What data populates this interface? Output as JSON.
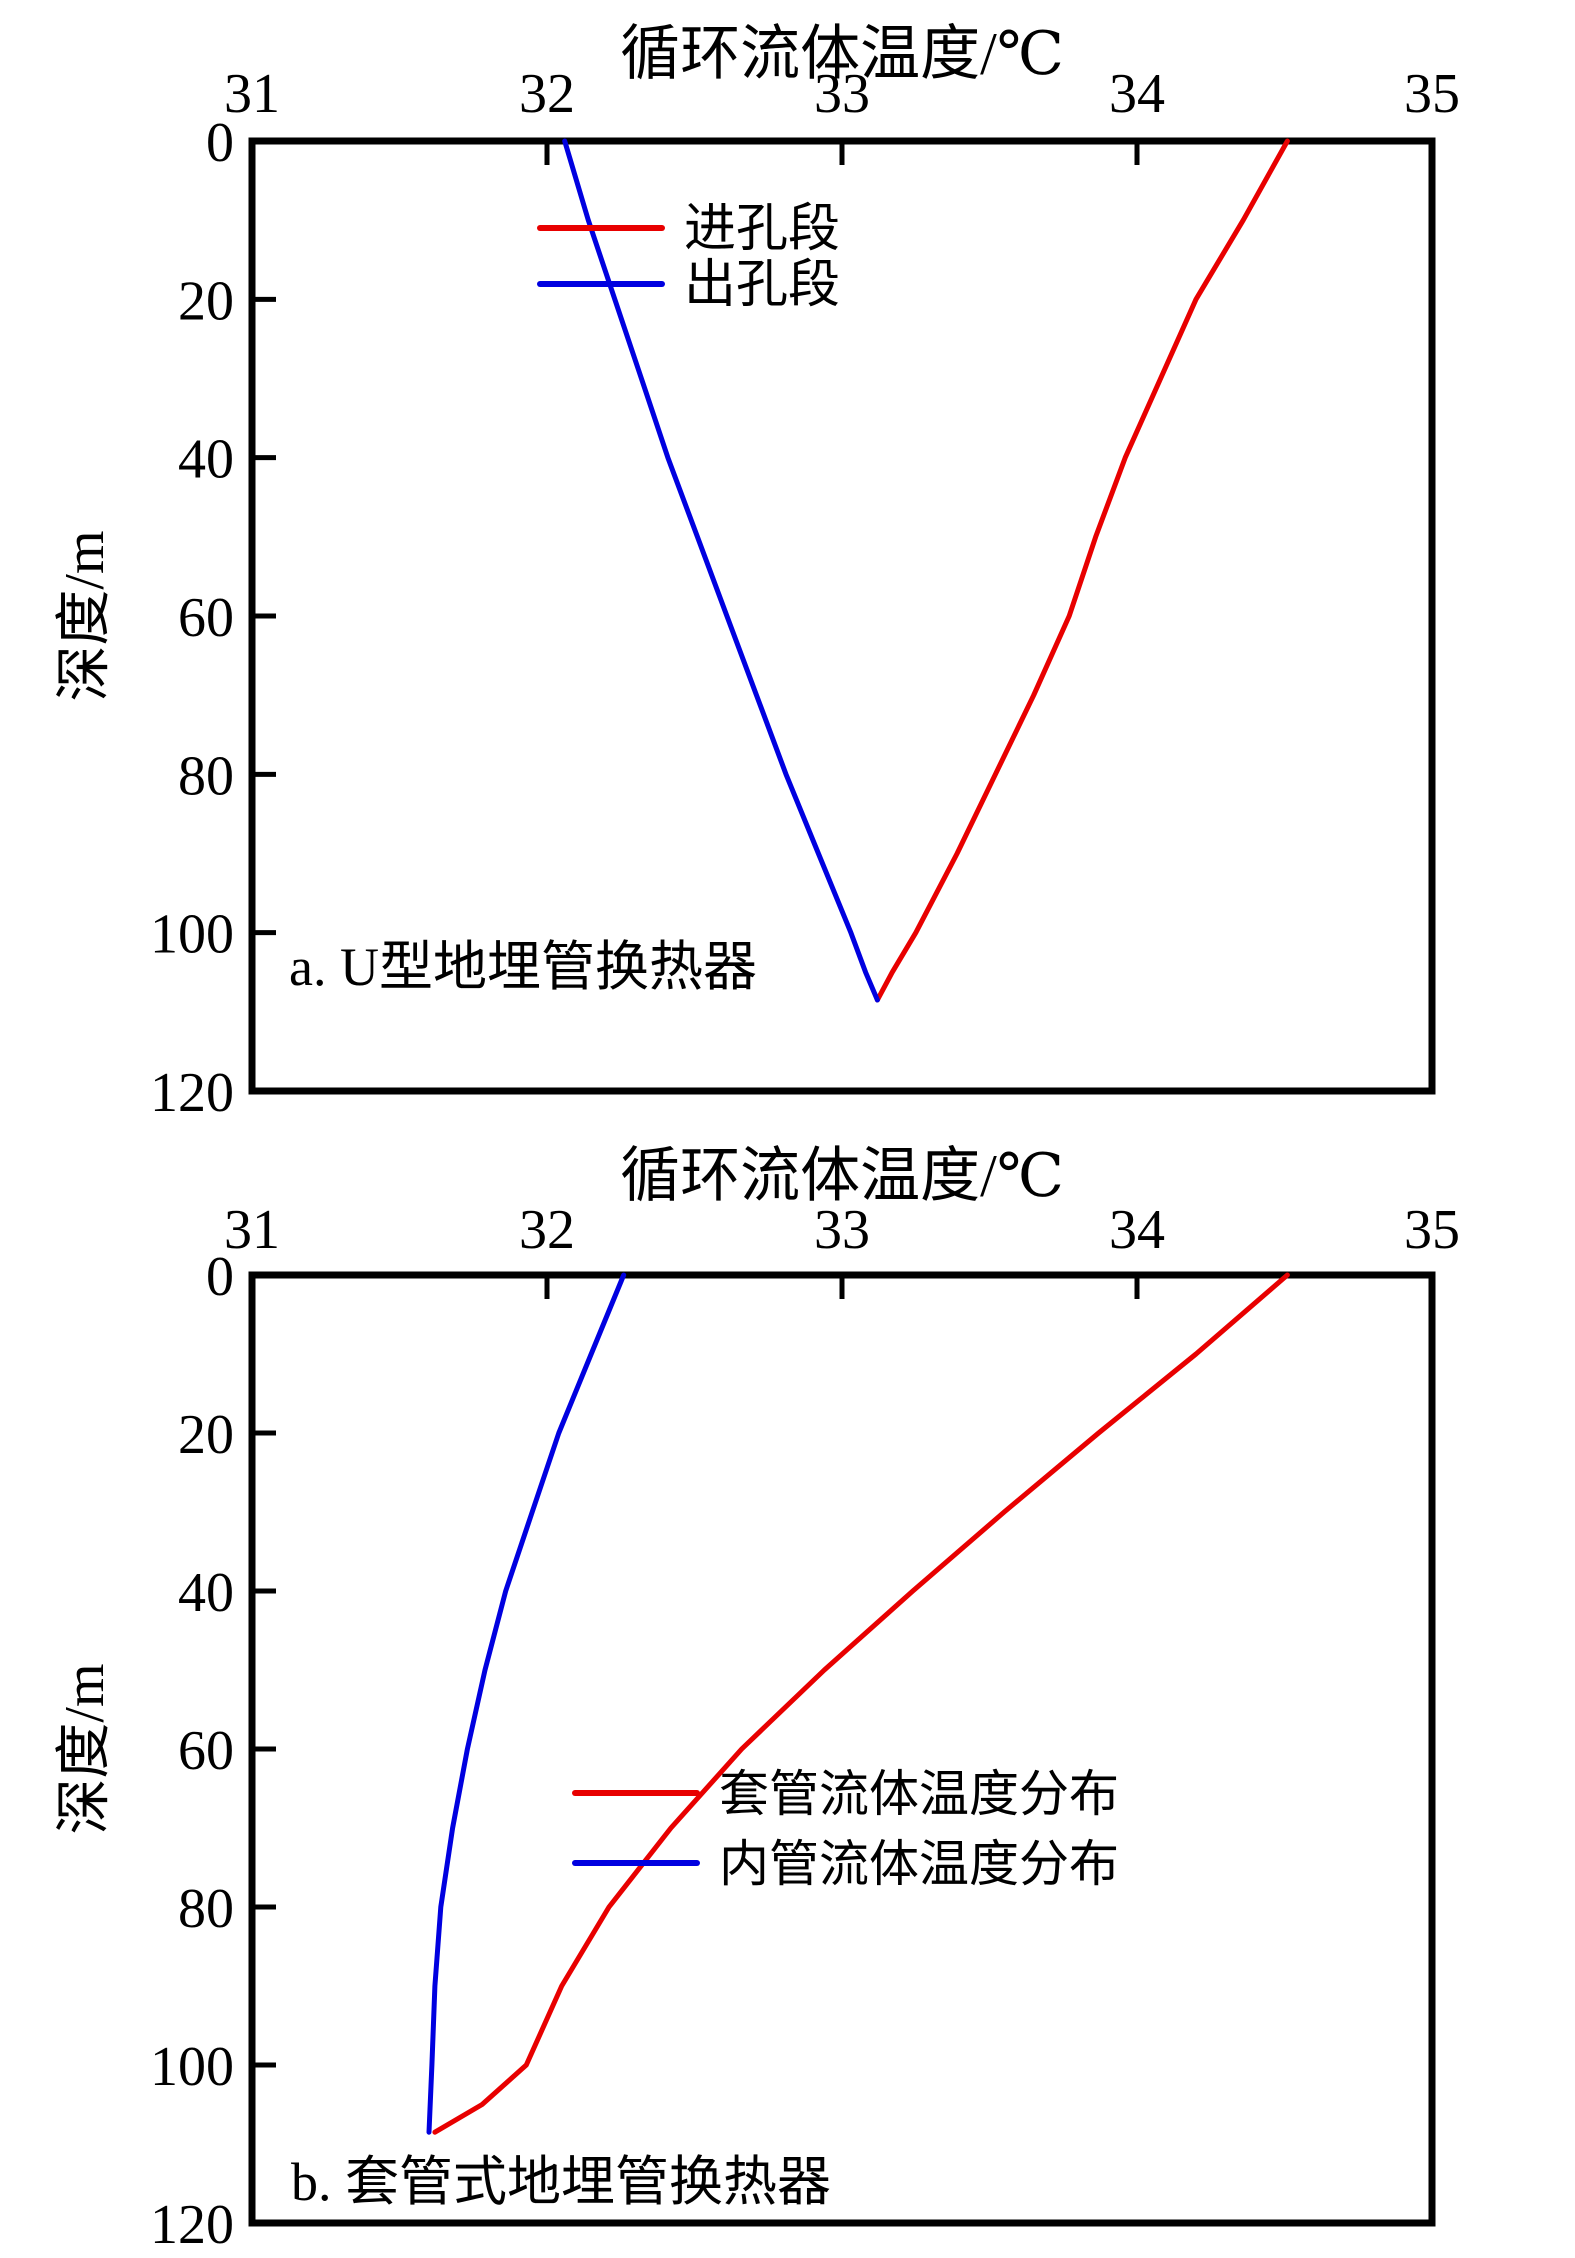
{
  "figure": {
    "background": "#ffffff",
    "axis_color": "#000000"
  },
  "chart_data": [
    {
      "id": "a",
      "type": "line",
      "title": "循环流体温度/℃",
      "xlabel": "循环流体温度/℃",
      "ylabel": "深度/m",
      "xlim": [
        31,
        35
      ],
      "ylim": [
        0,
        120
      ],
      "y_inverted": true,
      "x_ticks": [
        "31",
        "32",
        "33",
        "34",
        "35"
      ],
      "x_tick_values": [
        31,
        32,
        33,
        34,
        35
      ],
      "y_ticks": [
        "0",
        "20",
        "40",
        "60",
        "80",
        "100",
        "120"
      ],
      "y_tick_values": [
        0,
        20,
        40,
        60,
        80,
        100,
        120
      ],
      "grid": false,
      "panel_label": "a. U型地埋管换热器",
      "legend_position": "upper middle-right inside",
      "legend": [
        {
          "label": "进孔段",
          "color": "#e80000"
        },
        {
          "label": "出孔段",
          "color": "#0000e0"
        }
      ],
      "series": [
        {
          "name": "进孔段",
          "color": "#e80000",
          "points_temp_depth": [
            [
              34.51,
              0
            ],
            [
              34.36,
              10
            ],
            [
              34.2,
              20
            ],
            [
              34.08,
              30
            ],
            [
              33.96,
              40
            ],
            [
              33.86,
              50
            ],
            [
              33.77,
              60
            ],
            [
              33.65,
              70
            ],
            [
              33.52,
              80
            ],
            [
              33.39,
              90
            ],
            [
              33.25,
              100
            ],
            [
              33.17,
              105
            ],
            [
              33.12,
              108.5
            ]
          ]
        },
        {
          "name": "出孔段",
          "color": "#0000e0",
          "points_temp_depth": [
            [
              32.06,
              0
            ],
            [
              32.14,
              10
            ],
            [
              32.23,
              20
            ],
            [
              32.32,
              30
            ],
            [
              32.41,
              40
            ],
            [
              32.51,
              50
            ],
            [
              32.61,
              60
            ],
            [
              32.71,
              70
            ],
            [
              32.81,
              80
            ],
            [
              32.92,
              90
            ],
            [
              33.03,
              100
            ],
            [
              33.08,
              105
            ],
            [
              33.12,
              108.5
            ]
          ]
        }
      ]
    },
    {
      "id": "b",
      "type": "line",
      "title": "循环流体温度/℃",
      "xlabel": "循环流体温度/℃",
      "ylabel": "深度/m",
      "xlim": [
        31,
        35
      ],
      "ylim": [
        0,
        120
      ],
      "y_inverted": true,
      "x_ticks": [
        "31",
        "32",
        "33",
        "34",
        "35"
      ],
      "x_tick_values": [
        31,
        32,
        33,
        34,
        35
      ],
      "y_ticks": [
        "0",
        "20",
        "40",
        "60",
        "80",
        "100",
        "120"
      ],
      "y_tick_values": [
        0,
        20,
        40,
        60,
        80,
        100,
        120
      ],
      "grid": false,
      "panel_label": "b. 套管式地埋管换热器",
      "legend_position": "middle-right inside",
      "legend": [
        {
          "label": "套管流体温度分布",
          "color": "#e80000"
        },
        {
          "label": "内管流体温度分布",
          "color": "#0000e0"
        }
      ],
      "series": [
        {
          "name": "套管流体温度分布",
          "color": "#e80000",
          "points_temp_depth": [
            [
              34.51,
              0
            ],
            [
              34.2,
              10
            ],
            [
              33.87,
              20
            ],
            [
              33.55,
              30
            ],
            [
              33.24,
              40
            ],
            [
              32.94,
              50
            ],
            [
              32.66,
              60
            ],
            [
              32.42,
              70
            ],
            [
              32.21,
              80
            ],
            [
              32.05,
              90
            ],
            [
              31.93,
              100
            ],
            [
              31.78,
              105
            ],
            [
              31.62,
              108.5
            ]
          ]
        },
        {
          "name": "内管流体温度分布",
          "color": "#0000e0",
          "points_temp_depth": [
            [
              32.26,
              0
            ],
            [
              32.15,
              10
            ],
            [
              32.04,
              20
            ],
            [
              31.95,
              30
            ],
            [
              31.86,
              40
            ],
            [
              31.79,
              50
            ],
            [
              31.73,
              60
            ],
            [
              31.68,
              70
            ],
            [
              31.64,
              80
            ],
            [
              31.62,
              90
            ],
            [
              31.61,
              100
            ],
            [
              31.6,
              108.5
            ]
          ]
        }
      ]
    }
  ]
}
